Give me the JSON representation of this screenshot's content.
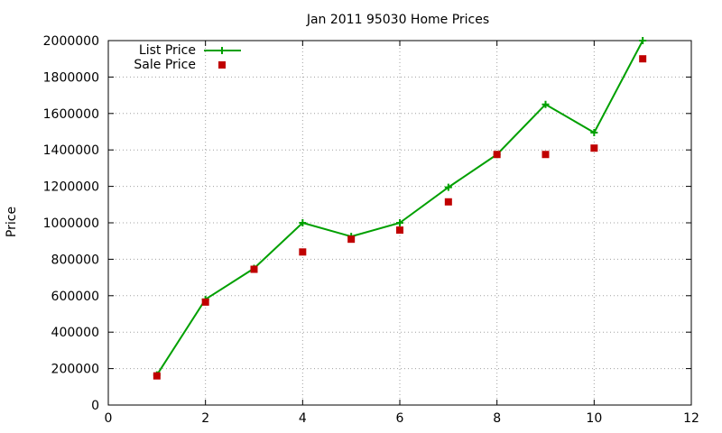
{
  "chart_data": {
    "type": "line",
    "title": "Jan 2011 95030 Home Prices",
    "xlabel": "",
    "ylabel": "Price",
    "xlim": [
      0,
      12
    ],
    "ylim": [
      0,
      2000000
    ],
    "x_ticks": [
      0,
      2,
      4,
      6,
      8,
      10,
      12
    ],
    "y_ticks": [
      0,
      200000,
      400000,
      600000,
      800000,
      1000000,
      1200000,
      1400000,
      1600000,
      1800000,
      2000000
    ],
    "grid": true,
    "legend_position": "top-left",
    "series": [
      {
        "name": "List Price",
        "style": "linespoints",
        "marker": "plus",
        "color": "#00a000",
        "x": [
          1,
          2,
          3,
          4,
          5,
          6,
          7,
          8,
          9,
          10,
          11
        ],
        "values": [
          165000,
          580000,
          750000,
          1000000,
          925000,
          1000000,
          1195000,
          1375000,
          1650000,
          1495000,
          2000000
        ]
      },
      {
        "name": "Sale Price",
        "style": "points",
        "marker": "square",
        "color": "#c00000",
        "x": [
          1,
          2,
          3,
          4,
          5,
          6,
          7,
          8,
          9,
          10,
          11
        ],
        "values": [
          160000,
          565000,
          745000,
          840000,
          910000,
          960000,
          1115000,
          1375000,
          1375000,
          1410000,
          1900000
        ]
      }
    ]
  }
}
